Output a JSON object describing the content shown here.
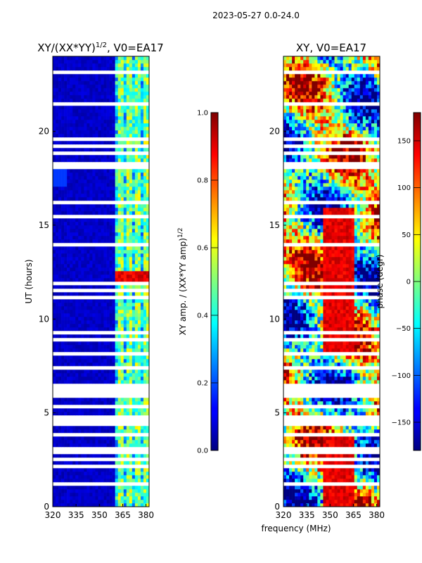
{
  "figure_title": "2023-05-27 0.0-24.0",
  "xlabel_shared": "frequency (MHz)",
  "chart_data": [
    {
      "type": "heatmap",
      "title_main": "XY/(XX*YY)",
      "title_sup": "1/2",
      "title_rest": ", V0=EA17",
      "ylabel": "UT (hours)",
      "xlim": [
        320,
        382
      ],
      "ylim": [
        0,
        24
      ],
      "xticks": [
        "320",
        "335",
        "350",
        "365",
        "380"
      ],
      "xtick_values": [
        320,
        335,
        350,
        365,
        380
      ],
      "yticks": [
        "0",
        "5",
        "10",
        "15",
        "20"
      ],
      "ytick_values": [
        0,
        5,
        10,
        15,
        20
      ],
      "colorbar": {
        "label_main": "XY amp. / (XX*YY amp)",
        "label_sup": "1/2",
        "range": [
          0.0,
          1.0
        ],
        "ticks": [
          "0.0",
          "0.2",
          "0.4",
          "0.6",
          "0.8",
          "1.0"
        ],
        "tick_values": [
          0.0,
          0.2,
          0.4,
          0.6,
          0.8,
          1.0
        ]
      }
    },
    {
      "type": "heatmap",
      "title": "XY, V0=EA17",
      "ylabel": "",
      "xlim": [
        320,
        382
      ],
      "ylim": [
        0,
        24
      ],
      "xticks": [
        "320",
        "335",
        "350",
        "365",
        "380"
      ],
      "xtick_values": [
        320,
        335,
        350,
        365,
        380
      ],
      "yticks": [
        "0",
        "5",
        "10",
        "15",
        "20"
      ],
      "ytick_values": [
        0,
        5,
        10,
        15,
        20
      ],
      "colorbar": {
        "label": "phase (degr)",
        "range": [
          -180,
          180
        ],
        "ticks": [
          "−150",
          "−100",
          "−50",
          "0",
          "50",
          "100",
          "150"
        ],
        "tick_values": [
          -150,
          -100,
          -50,
          0,
          50,
          100,
          150
        ]
      }
    }
  ],
  "colors": {
    "jet_low": "#00007f",
    "jet_mid": "#7fff7f",
    "jet_high": "#7f0000",
    "gap": "#ffffff"
  }
}
